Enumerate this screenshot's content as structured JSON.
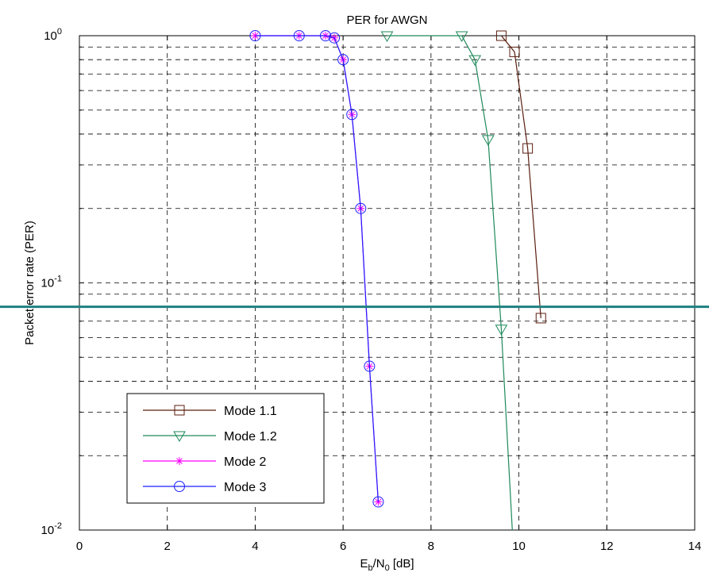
{
  "chart_data": {
    "type": "line",
    "title": "PER for AWGN",
    "xlabel": {
      "main": "E",
      "sub1": "b",
      "mid": "/N",
      "sub2": "0",
      "tail": " [dB]"
    },
    "ylabel": "Packet error rate (PER)",
    "xlim": [
      0,
      14
    ],
    "ylim": [
      0.01,
      1
    ],
    "yscale": "log",
    "grid": true,
    "x_ticks": [
      "0",
      "2",
      "4",
      "6",
      "8",
      "10",
      "12",
      "14"
    ],
    "y_ticks": [
      {
        "base": "10",
        "exp": "0"
      },
      {
        "base": "10",
        "exp": "-1"
      },
      {
        "base": "10",
        "exp": "-2"
      }
    ],
    "legend_position": "lower-left",
    "series": [
      {
        "name": "Mode 1.1",
        "color": "#5a1e0f",
        "marker": "square",
        "x": [
          9.6,
          9.9,
          10.2,
          10.5
        ],
        "y": [
          1.0,
          0.86,
          0.35,
          0.072
        ]
      },
      {
        "name": "Mode 1.2",
        "color": "#1e8a5a",
        "marker": "triangle-down",
        "x": [
          7.0,
          8.7,
          9.0,
          9.3,
          9.6,
          9.85
        ],
        "y": [
          1.0,
          1.0,
          0.8,
          0.38,
          0.065,
          0.01
        ]
      },
      {
        "name": "Mode 2",
        "color": "#ff00ff",
        "marker": "star",
        "x": [
          4.0,
          5.0,
          5.6,
          5.8,
          6.0,
          6.2,
          6.4,
          6.6,
          6.8
        ],
        "y": [
          1.0,
          1.0,
          1.0,
          0.98,
          0.8,
          0.48,
          0.2,
          0.046,
          0.013
        ]
      },
      {
        "name": "Mode 3",
        "color": "#1f1fff",
        "marker": "circle",
        "x": [
          4.0,
          5.0,
          5.6,
          5.8,
          6.0,
          6.2,
          6.4,
          6.6,
          6.8
        ],
        "y": [
          1.0,
          1.0,
          1.0,
          0.98,
          0.8,
          0.48,
          0.2,
          0.046,
          0.013
        ]
      }
    ],
    "reference_line": {
      "y": 0.08,
      "color": "#208080"
    }
  }
}
